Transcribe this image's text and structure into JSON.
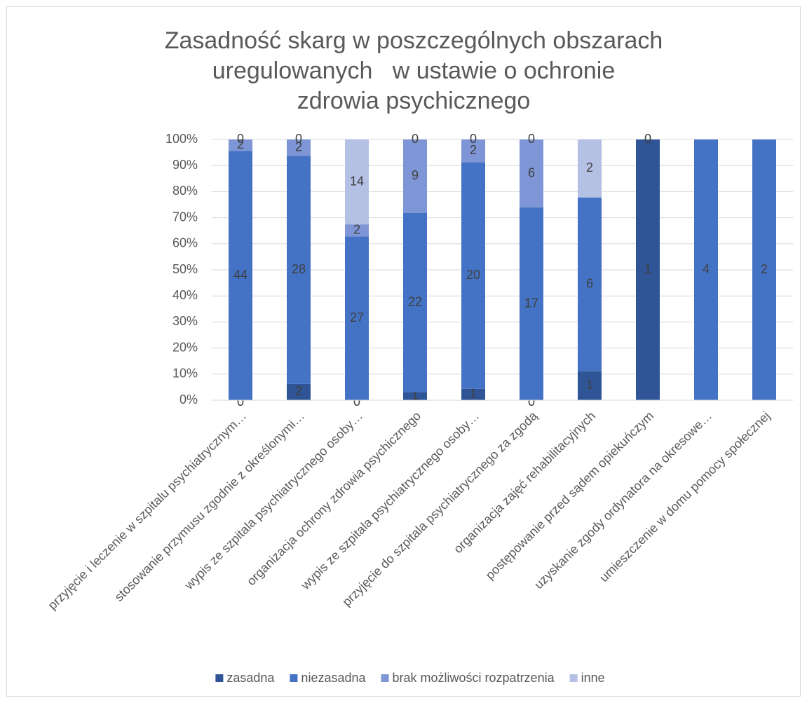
{
  "chart_data": {
    "type": "bar",
    "stacking": "percent",
    "title": "Zasadność skarg w poszczególnych obszarach uregulowanych   w ustawie o ochronie zdrowia psychicznego",
    "categories": [
      "przyjęcie i leczenie w szpitalu psychiatrycznym…",
      "stosowanie przymusu zgodnie z określonymi…",
      "wypis ze szpitala psychiatrycznego osoby…",
      "organizacja ochrony zdrowia psychicznego",
      "wypis ze szpitala psychiatrycznego osoby…",
      "przyjęcie do szpitala psychiatrycznego za zgodą",
      "organizacja zajęć rehabilitacyjnych",
      "postępowanie przed sądem opiekuńczym",
      "uzyskanie zgody ordynatora na okresowe…",
      "umieszczenie w domu pomocy społecznej"
    ],
    "series": [
      {
        "name": "zasadna",
        "color": "#2f5597",
        "values": [
          0,
          2,
          0,
          1,
          1,
          0,
          1,
          1,
          null,
          null
        ]
      },
      {
        "name": "niezasadna",
        "color": "#4472c4",
        "values": [
          44,
          28,
          27,
          22,
          20,
          17,
          6,
          null,
          4,
          2
        ]
      },
      {
        "name": "brak możliwości rozpatrzenia",
        "color": "#7f96d6",
        "values": [
          2,
          2,
          2,
          9,
          2,
          6,
          null,
          null,
          null,
          null
        ]
      },
      {
        "name": "inne",
        "color": "#b4c0e4",
        "values": [
          0,
          0,
          14,
          0,
          0,
          0,
          2,
          0,
          null,
          null
        ]
      }
    ],
    "ylim": [
      0,
      100
    ],
    "yticks": [
      {
        "value": 0,
        "label": "0%"
      },
      {
        "value": 10,
        "label": "10%"
      },
      {
        "value": 20,
        "label": "20%"
      },
      {
        "value": 30,
        "label": "30%"
      },
      {
        "value": 40,
        "label": "40%"
      },
      {
        "value": 50,
        "label": "50%"
      },
      {
        "value": 60,
        "label": "60%"
      },
      {
        "value": 70,
        "label": "70%"
      },
      {
        "value": 80,
        "label": "80%"
      },
      {
        "value": 90,
        "label": "90%"
      },
      {
        "value": 100,
        "label": "100%"
      }
    ],
    "grid": true,
    "legend": "bottom"
  }
}
